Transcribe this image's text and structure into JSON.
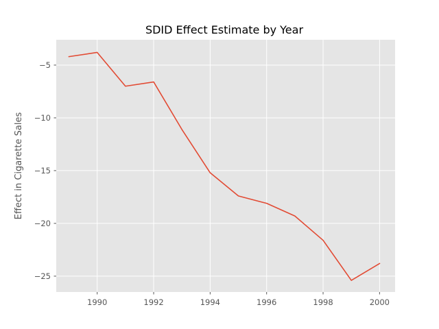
{
  "chart_data": {
    "type": "line",
    "title": "SDID Effect Estimate by Year",
    "xlabel": "",
    "ylabel": "Effect in Cigarette Sales",
    "x": [
      1989,
      1990,
      1991,
      1992,
      1993,
      1994,
      1995,
      1996,
      1997,
      1998,
      1999,
      2000
    ],
    "series": [
      {
        "values": [
          -4.2,
          -3.8,
          -7.0,
          -6.6,
          -11.1,
          -15.2,
          -17.4,
          -18.1,
          -19.3,
          -21.6,
          -25.4,
          -23.8
        ]
      }
    ],
    "xlim": [
      1988.55,
      2000.55
    ],
    "ylim": [
      -26.5,
      -2.6
    ],
    "xticks": [
      1990,
      1992,
      1994,
      1996,
      1998,
      2000
    ],
    "yticks": [
      -5,
      -10,
      -15,
      -20,
      -25
    ],
    "xtick_labels": [
      "1990",
      "1992",
      "1994",
      "1996",
      "1998",
      "2000"
    ],
    "ytick_labels": [
      "−5",
      "−10",
      "−15",
      "−20",
      "−25"
    ],
    "grid": true,
    "style": "ggplot",
    "colors": {
      "line": "#E24A33",
      "plot_background": "#E5E5E5",
      "grid": "#FFFFFF",
      "text": "#555555"
    }
  }
}
